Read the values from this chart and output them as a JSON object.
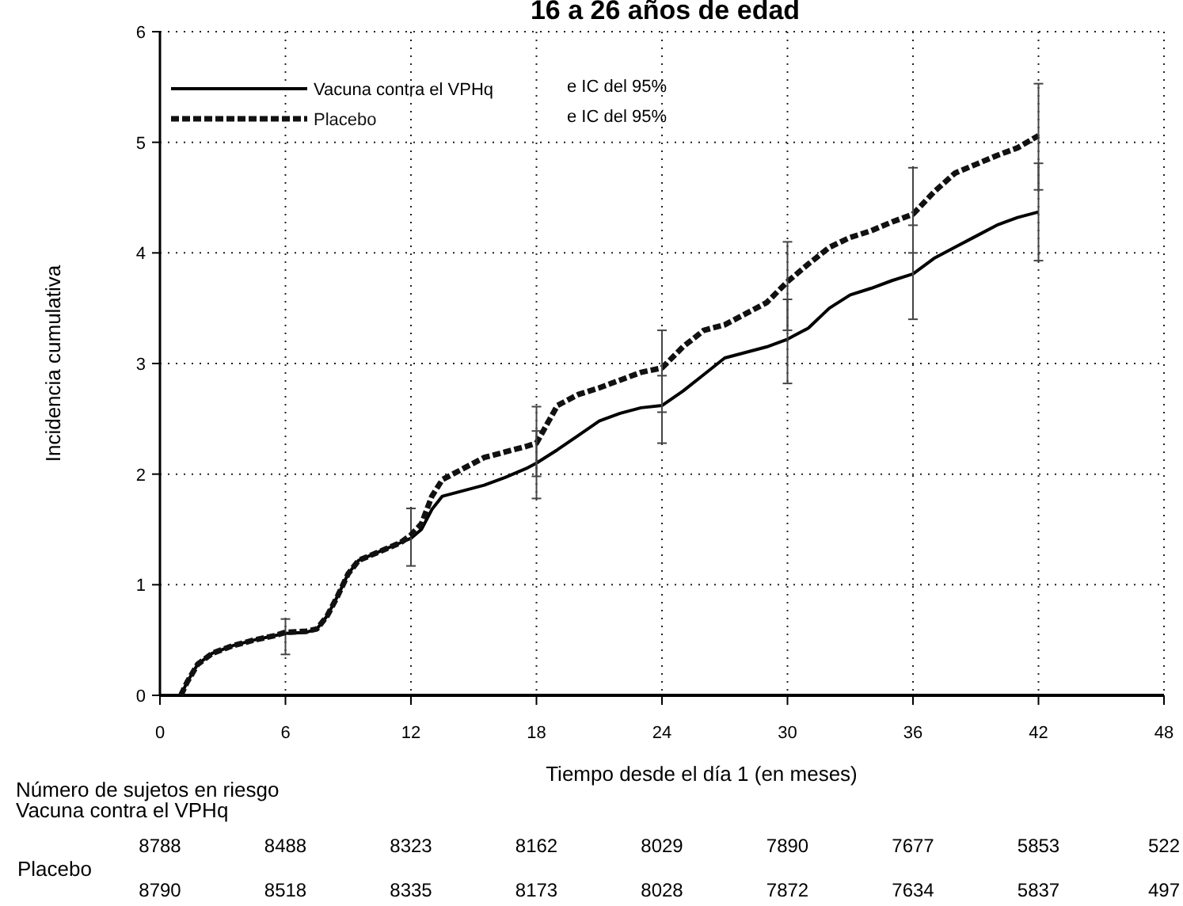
{
  "chart_data": {
    "type": "line",
    "title": "16 a 26 años de edad",
    "xlabel": "Tiempo desde el día 1 (en meses)",
    "ylabel": "Incidencia cumulativa",
    "xlim": [
      0,
      48
    ],
    "xticks": [
      0,
      6,
      12,
      18,
      24,
      30,
      36,
      42,
      48
    ],
    "ylim": [
      0,
      6
    ],
    "yticks": [
      0,
      1,
      2,
      3,
      4,
      5,
      6
    ],
    "grid": true,
    "legend": "top left",
    "marker": "none",
    "series": [
      {
        "name": "Vacuna contra el VPHq",
        "color": "#000000",
        "line_style": "solid",
        "x": [
          1,
          1.3,
          1.8,
          2.5,
          3.5,
          4.5,
          5.5,
          6,
          7,
          7.5,
          8,
          8.5,
          9,
          9.5,
          10.5,
          11.5,
          12,
          12.5,
          13,
          13.5,
          14.5,
          15.5,
          16.5,
          17.5,
          18,
          19,
          20,
          21,
          22,
          23,
          24,
          25,
          26,
          27,
          28,
          29,
          30,
          31,
          32,
          33,
          34,
          35,
          36,
          37,
          38,
          39,
          40,
          41,
          42
        ],
        "values": [
          0,
          0.12,
          0.28,
          0.38,
          0.45,
          0.5,
          0.54,
          0.56,
          0.57,
          0.6,
          0.72,
          0.9,
          1.1,
          1.22,
          1.3,
          1.38,
          1.42,
          1.5,
          1.68,
          1.8,
          1.85,
          1.9,
          1.97,
          2.05,
          2.1,
          2.22,
          2.35,
          2.48,
          2.55,
          2.6,
          2.62,
          2.75,
          2.9,
          3.05,
          3.1,
          3.15,
          3.22,
          3.32,
          3.5,
          3.62,
          3.68,
          3.75,
          3.81,
          3.95,
          4.05,
          4.15,
          4.25,
          4.32,
          4.37
        ],
        "errors": [
          null,
          null,
          null,
          null,
          null,
          null,
          null,
          [
            0.37,
            0.69
          ],
          null,
          null,
          null,
          null,
          null,
          null,
          null,
          null,
          [
            1.17,
            1.69
          ],
          null,
          null,
          null,
          null,
          null,
          null,
          null,
          [
            1.78,
            2.39
          ],
          null,
          null,
          null,
          null,
          null,
          [
            2.28,
            2.89
          ],
          null,
          null,
          null,
          null,
          null,
          [
            2.82,
            3.58
          ],
          null,
          null,
          null,
          null,
          null,
          [
            3.4,
            4.25
          ],
          null,
          null,
          null,
          null,
          null,
          [
            3.93,
            4.81
          ]
        ]
      },
      {
        "name": "Placebo",
        "color": "#111111",
        "line_style": "dashed",
        "x": [
          1,
          1.3,
          1.8,
          2.5,
          3.5,
          4.5,
          5.5,
          6,
          7,
          7.5,
          8,
          8.5,
          9,
          9.5,
          10.5,
          11.5,
          12,
          12.5,
          13,
          13.5,
          14.5,
          15.5,
          16.5,
          17.5,
          18,
          18.5,
          19,
          20,
          21,
          22,
          23,
          24,
          25,
          26,
          27,
          28,
          29,
          30,
          31,
          32,
          33,
          34,
          35,
          36,
          37,
          38,
          39,
          40,
          41,
          42
        ],
        "values": [
          0,
          0.12,
          0.28,
          0.38,
          0.45,
          0.5,
          0.54,
          0.57,
          0.58,
          0.6,
          0.72,
          0.9,
          1.1,
          1.22,
          1.3,
          1.38,
          1.45,
          1.55,
          1.8,
          1.95,
          2.05,
          2.15,
          2.2,
          2.25,
          2.28,
          2.45,
          2.62,
          2.72,
          2.78,
          2.85,
          2.92,
          2.96,
          3.15,
          3.3,
          3.35,
          3.45,
          3.55,
          3.74,
          3.9,
          4.05,
          4.14,
          4.2,
          4.28,
          4.35,
          4.55,
          4.72,
          4.8,
          4.88,
          4.95,
          5.06
        ],
        "errors": [
          null,
          null,
          null,
          null,
          null,
          null,
          null,
          null,
          null,
          null,
          null,
          null,
          null,
          null,
          null,
          null,
          null,
          null,
          null,
          null,
          null,
          null,
          null,
          null,
          [
            1.98,
            2.61
          ],
          null,
          null,
          null,
          null,
          null,
          null,
          [
            2.56,
            3.3
          ],
          null,
          null,
          null,
          null,
          null,
          [
            3.3,
            4.1
          ],
          null,
          null,
          null,
          null,
          null,
          [
            4,
            4.77
          ],
          null,
          null,
          null,
          null,
          null,
          [
            4.57,
            5.53
          ]
        ]
      }
    ],
    "annotations": [
      "e IC del 95%",
      "e IC del 95%",
      "Número de sujetos en riesgo",
      "Vacuna contra el VPHq",
      "Placebo",
      "8788",
      "8488",
      "8323",
      "8162",
      "8029",
      "7890",
      "7677",
      "5853",
      "522",
      "8790",
      "8518",
      "8335",
      "8173",
      "8028",
      "7872",
      "7634",
      "5837",
      "497"
    ]
  }
}
